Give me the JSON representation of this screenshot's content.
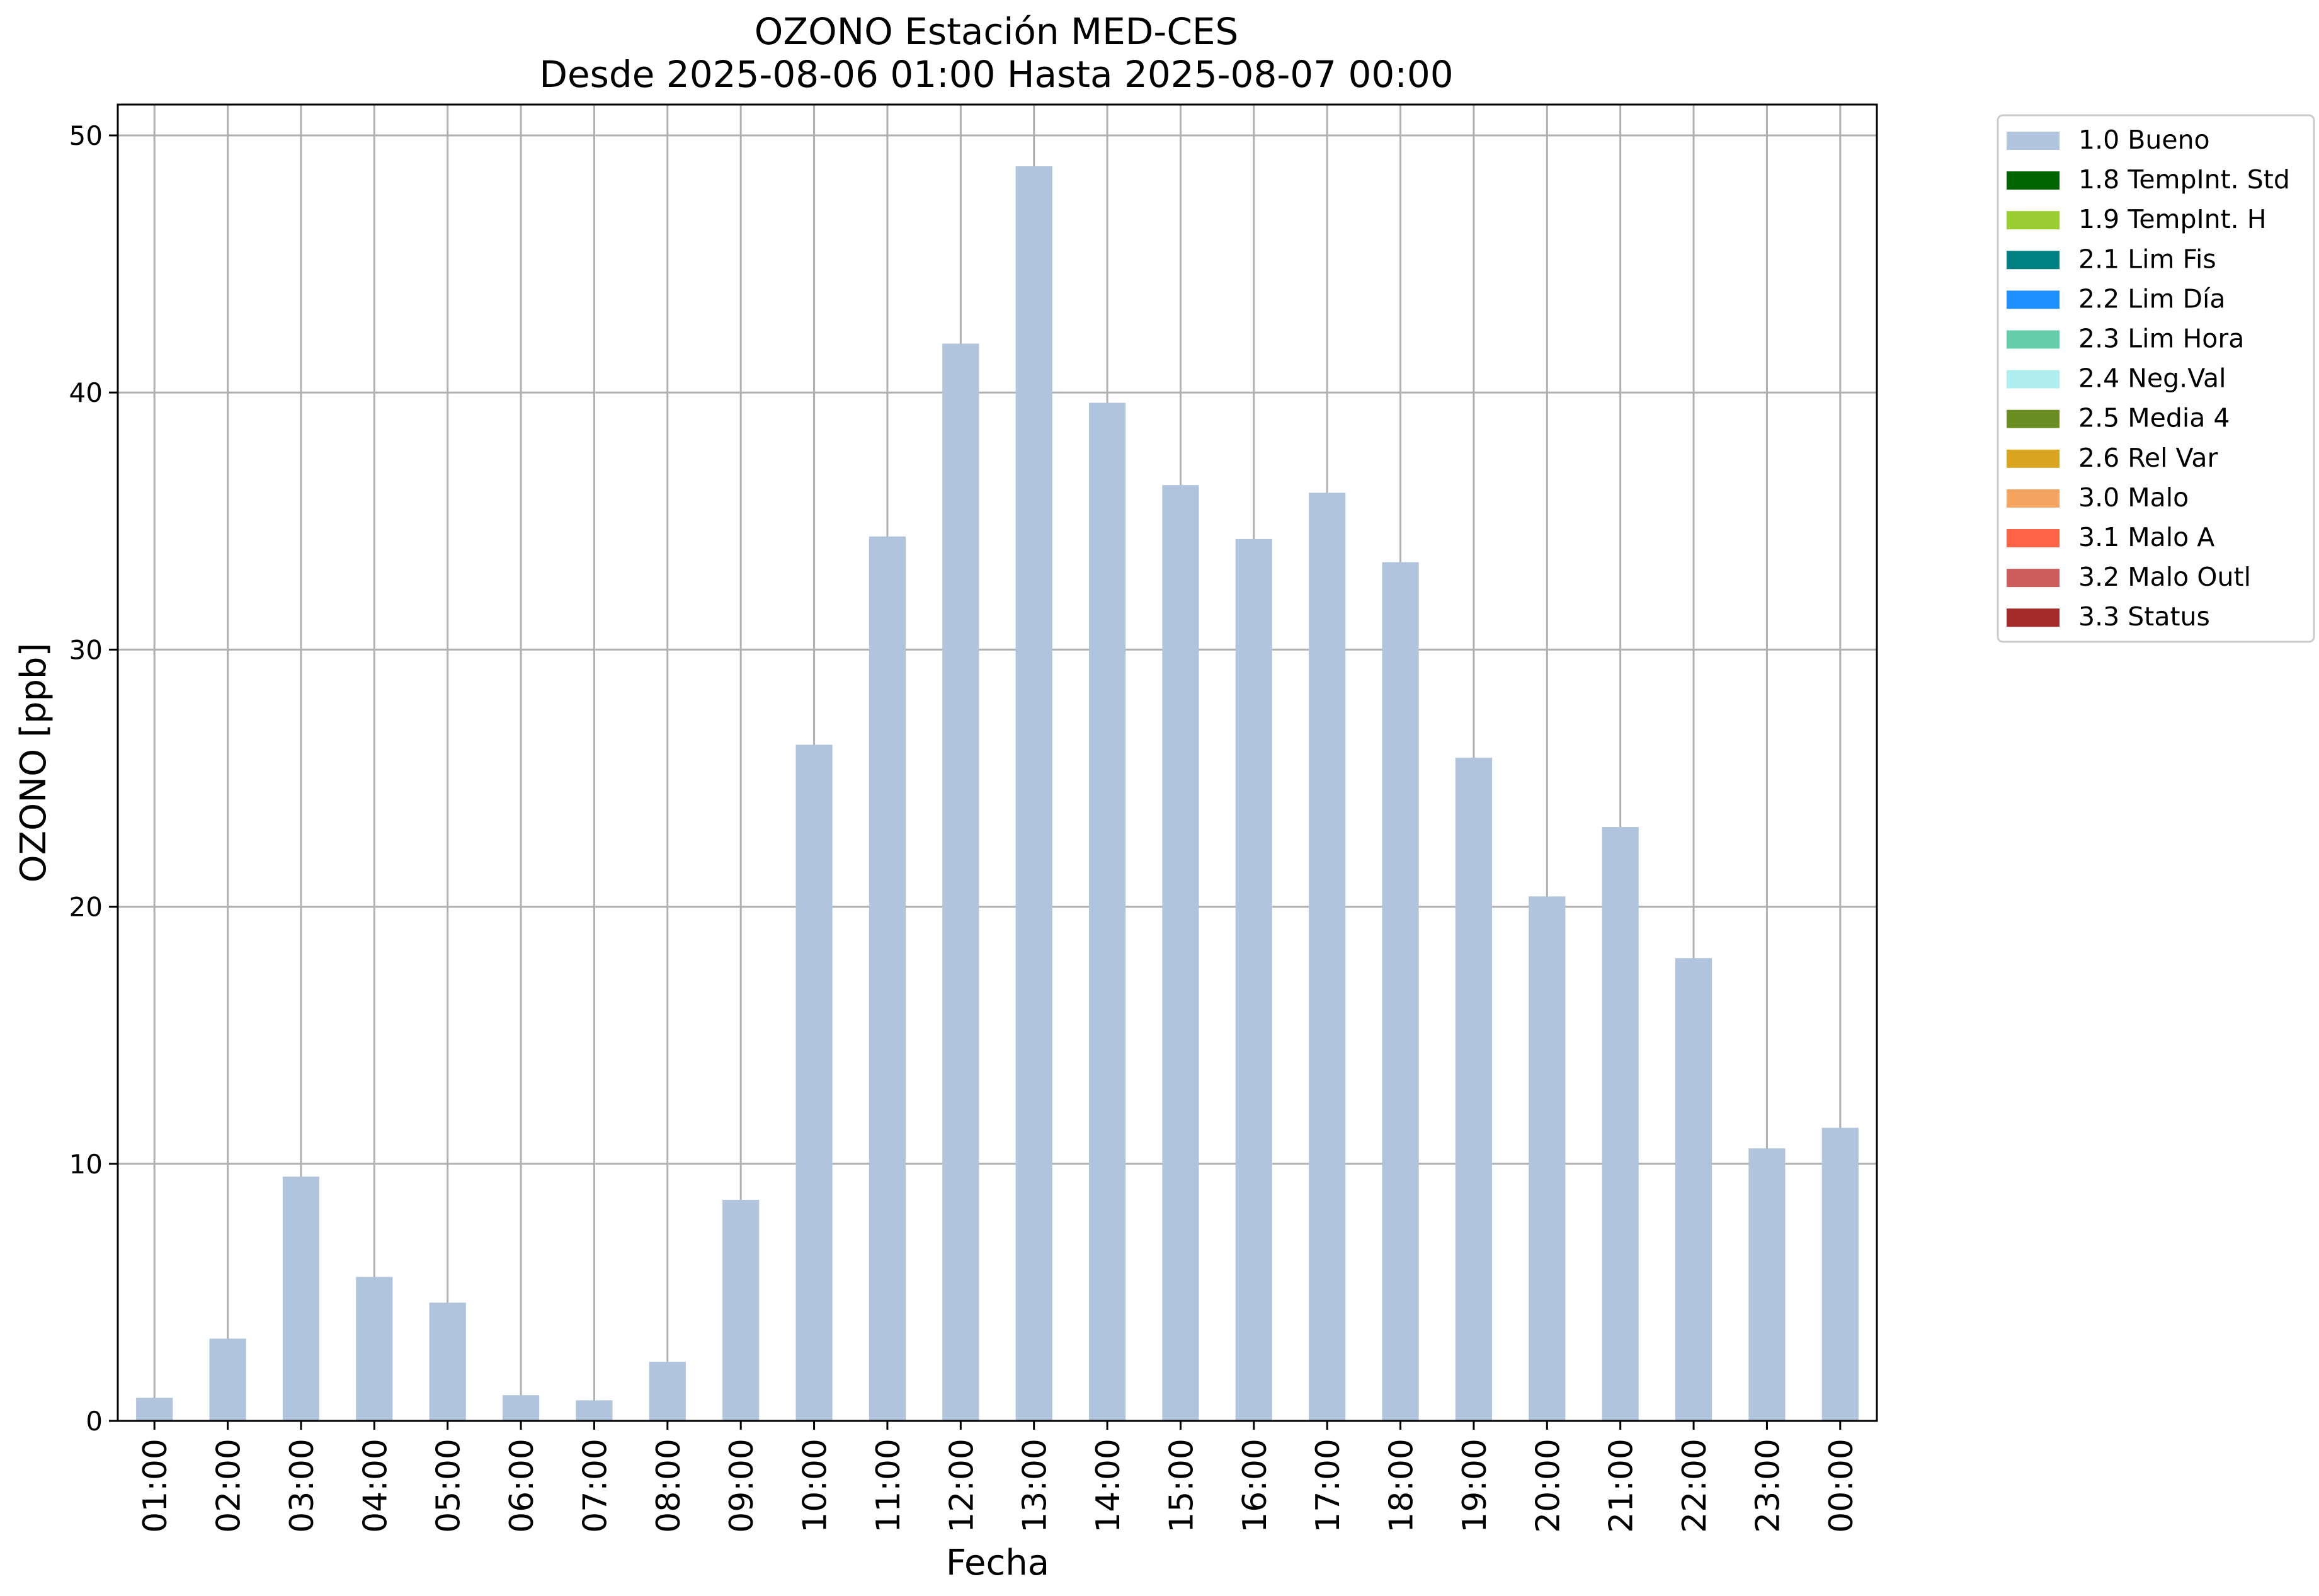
{
  "chart_data": {
    "type": "bar",
    "title": "OZONO Estación MED-CES",
    "subtitle": "Desde 2025-08-06 01:00 Hasta 2025-08-07 00:00",
    "xlabel": "Fecha",
    "ylabel": "OZONO [ppb]",
    "ylim": [
      0,
      51.2
    ],
    "yticks": [
      "0",
      "10",
      "20",
      "30",
      "40",
      "50"
    ],
    "grid": true,
    "legend_position": "outside-right",
    "categories": [
      "01:00",
      "02:00",
      "03:00",
      "04:00",
      "05:00",
      "06:00",
      "07:00",
      "08:00",
      "09:00",
      "10:00",
      "11:00",
      "12:00",
      "13:00",
      "14:00",
      "15:00",
      "16:00",
      "17:00",
      "18:00",
      "19:00",
      "20:00",
      "21:00",
      "22:00",
      "23:00",
      "00:00"
    ],
    "series": [
      {
        "name": "1.0 Bueno",
        "color": "#b0c4de",
        "values": [
          0.9,
          3.2,
          9.5,
          5.6,
          4.6,
          1.0,
          0.8,
          2.3,
          8.6,
          26.3,
          34.4,
          41.9,
          48.8,
          39.6,
          36.4,
          34.3,
          36.1,
          33.4,
          25.8,
          20.4,
          23.1,
          18.0,
          10.6,
          11.4
        ]
      }
    ],
    "legend": [
      {
        "label": "1.0 Bueno",
        "color": "#b0c4de"
      },
      {
        "label": "1.8 TempInt. Std",
        "color": "#006400"
      },
      {
        "label": "1.9 TempInt. H",
        "color": "#9acd32"
      },
      {
        "label": "2.1 Lim Fis",
        "color": "#008080"
      },
      {
        "label": "2.2 Lim Día",
        "color": "#1e90ff"
      },
      {
        "label": "2.3 Lim Hora",
        "color": "#66cdaa"
      },
      {
        "label": "2.4 Neg.Val",
        "color": "#afeeee"
      },
      {
        "label": "2.5 Media 4",
        "color": "#6b8e23"
      },
      {
        "label": "2.6 Rel Var",
        "color": "#daa520"
      },
      {
        "label": "3.0 Malo",
        "color": "#f4a460"
      },
      {
        "label": "3.1 Malo A",
        "color": "#ff6347"
      },
      {
        "label": "3.2 Malo Outl",
        "color": "#cd5c5c"
      },
      {
        "label": "3.3 Status",
        "color": "#a52a2a"
      }
    ]
  }
}
